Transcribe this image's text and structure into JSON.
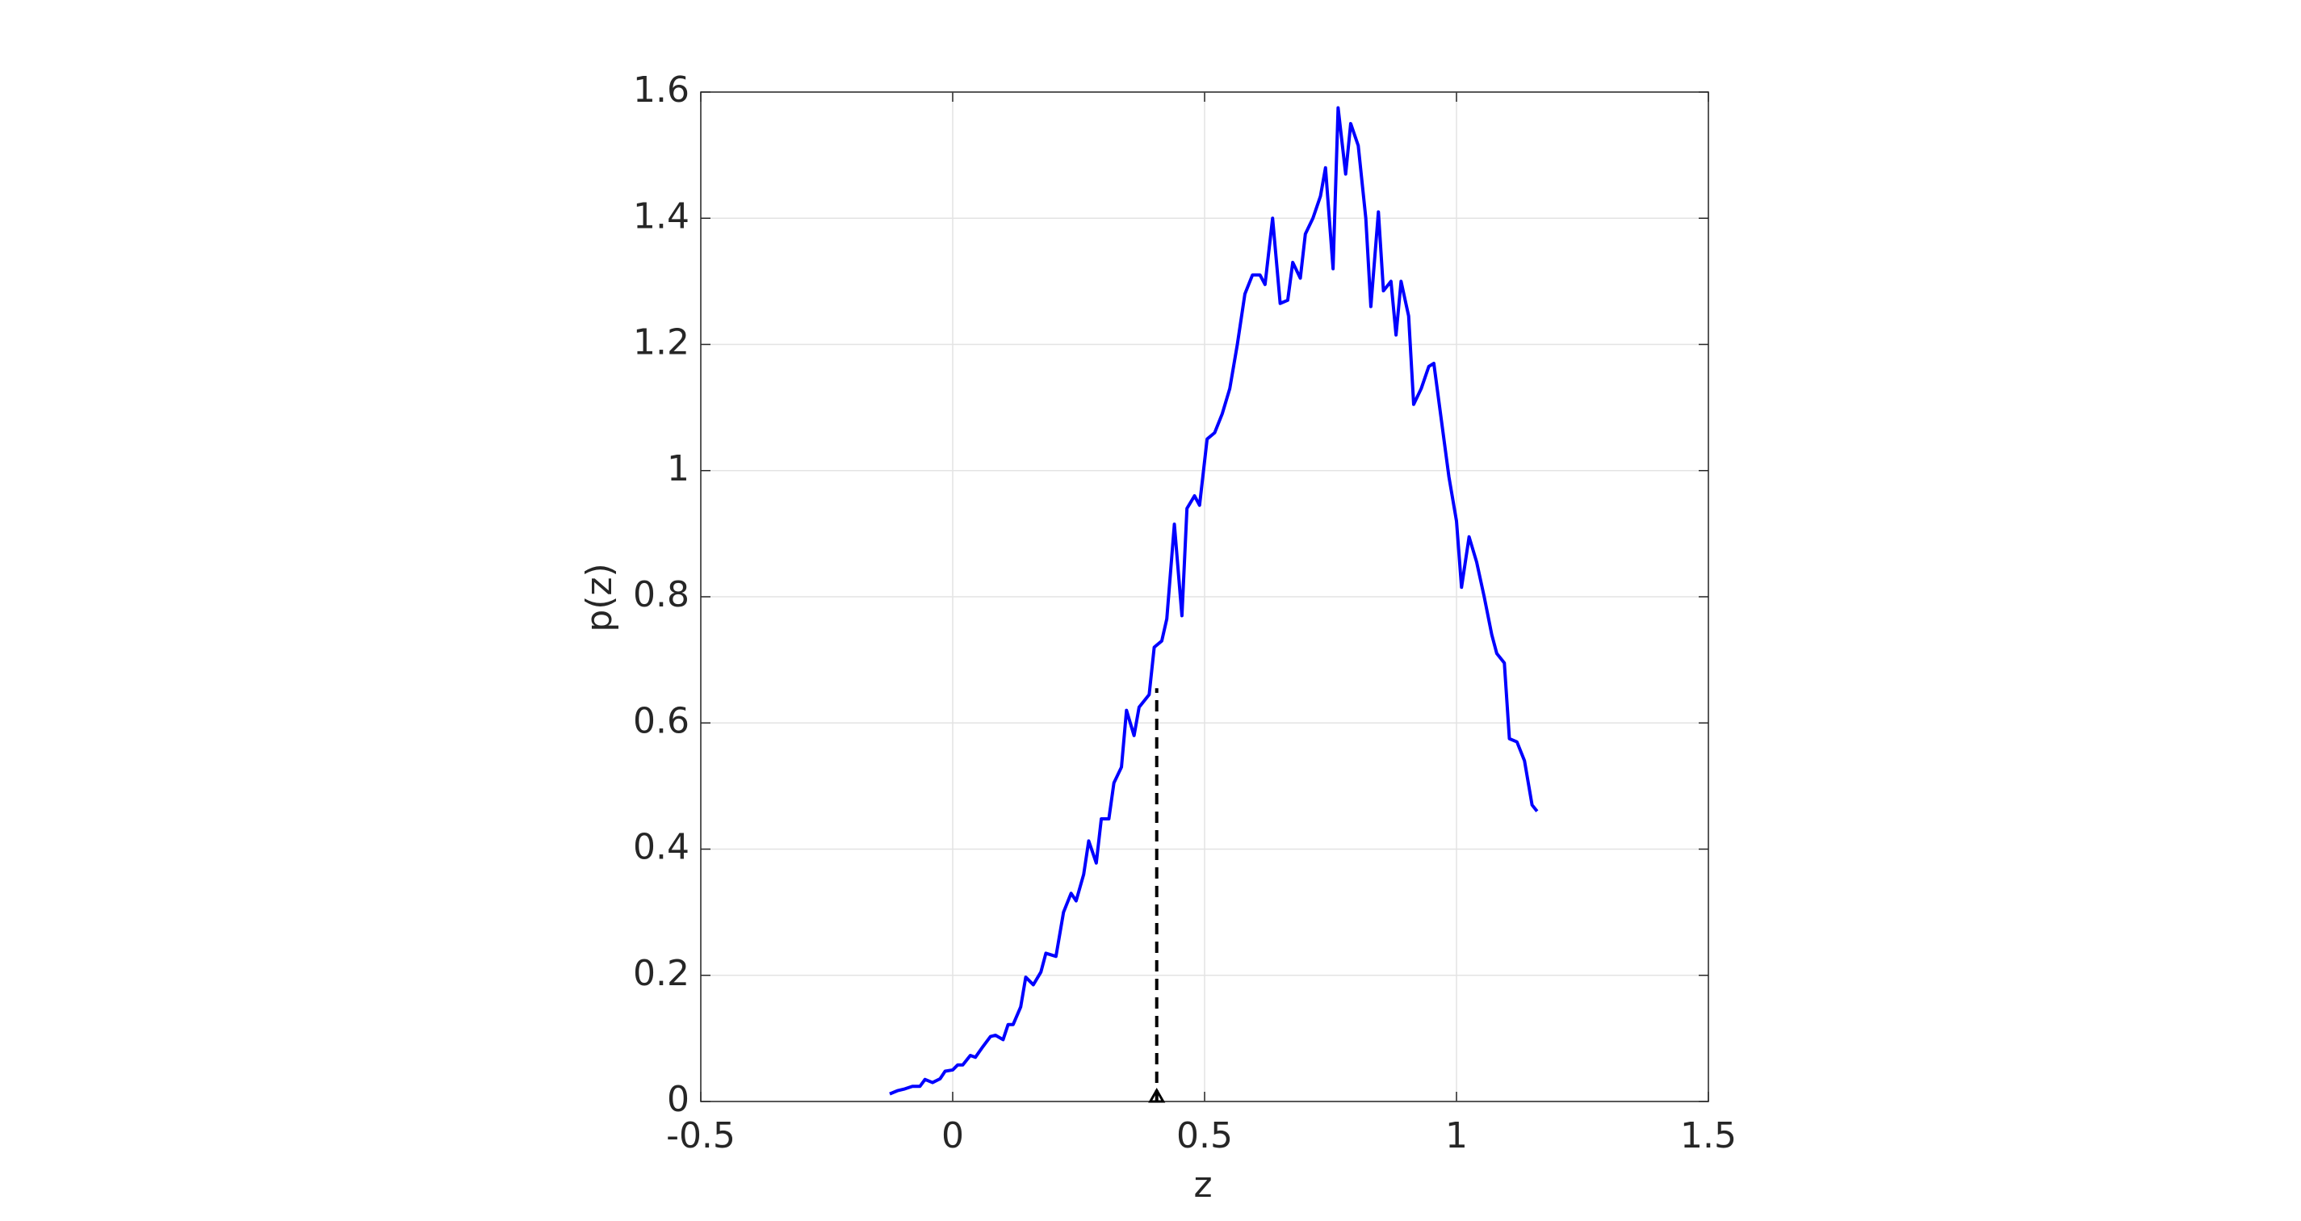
{
  "chart_data": {
    "type": "line",
    "x_label": "z",
    "y_label": "p(z)",
    "xlim": [
      -0.5,
      1.5
    ],
    "xticks": [
      -0.5,
      0,
      0.5,
      1,
      1.5
    ],
    "ylim": [
      0,
      1.6
    ],
    "yticks": [
      0,
      0.2,
      0.4,
      0.6,
      0.8,
      1,
      1.2,
      1.4,
      1.6
    ],
    "grid": true,
    "x": [
      -0.125,
      -0.11,
      -0.095,
      -0.08,
      -0.065,
      -0.055,
      -0.04,
      -0.025,
      -0.015,
      0,
      0.01,
      0.02,
      0.035,
      0.045,
      0.06,
      0.075,
      0.085,
      0.1,
      0.11,
      0.12,
      0.135,
      0.145,
      0.16,
      0.175,
      0.185,
      0.205,
      0.22,
      0.235,
      0.245,
      0.26,
      0.27,
      0.285,
      0.295,
      0.31,
      0.32,
      0.335,
      0.345,
      0.36,
      0.37,
      0.39,
      0.4,
      0.415,
      0.425,
      0.44,
      0.455,
      0.465,
      0.48,
      0.49,
      0.505,
      0.52,
      0.535,
      0.55,
      0.565,
      0.58,
      0.595,
      0.61,
      0.62,
      0.635,
      0.65,
      0.665,
      0.675,
      0.69,
      0.7,
      0.715,
      0.73,
      0.74,
      0.755,
      0.765,
      0.78,
      0.79,
      0.805,
      0.82,
      0.83,
      0.845,
      0.855,
      0.87,
      0.88,
      0.89,
      0.905,
      0.915,
      0.93,
      0.945,
      0.955,
      0.97,
      0.985,
      1.0,
      1.01,
      1.025,
      1.04,
      1.055,
      1.07,
      1.08,
      1.095,
      1.105,
      1.12,
      1.135,
      1.15,
      1.16
    ],
    "series": [
      {
        "color": "#0000ff",
        "values": [
          0.012,
          0.017,
          0.02,
          0.024,
          0.024,
          0.035,
          0.03,
          0.036,
          0.048,
          0.05,
          0.058,
          0.058,
          0.073,
          0.07,
          0.087,
          0.103,
          0.105,
          0.098,
          0.122,
          0.122,
          0.15,
          0.197,
          0.185,
          0.205,
          0.235,
          0.23,
          0.3,
          0.33,
          0.318,
          0.36,
          0.413,
          0.378,
          0.448,
          0.448,
          0.505,
          0.53,
          0.62,
          0.58,
          0.625,
          0.645,
          0.72,
          0.73,
          0.765,
          0.915,
          0.77,
          0.94,
          0.96,
          0.945,
          1.05,
          1.06,
          1.09,
          1.13,
          1.2,
          1.28,
          1.31,
          1.31,
          1.295,
          1.4,
          1.265,
          1.27,
          1.33,
          1.305,
          1.375,
          1.4,
          1.435,
          1.48,
          1.32,
          1.575,
          1.47,
          1.55,
          1.515,
          1.4,
          1.26,
          1.41,
          1.285,
          1.3,
          1.215,
          1.3,
          1.245,
          1.105,
          1.13,
          1.165,
          1.17,
          1.08,
          0.99,
          0.92,
          0.815,
          0.895,
          0.855,
          0.8,
          0.74,
          0.71,
          0.695,
          0.575,
          0.57,
          0.54,
          0.47,
          0.46
        ]
      }
    ],
    "dashed_line": {
      "color": "#000000",
      "x": [
        0.405,
        0.405
      ],
      "values": [
        0,
        0.655
      ]
    }
  }
}
